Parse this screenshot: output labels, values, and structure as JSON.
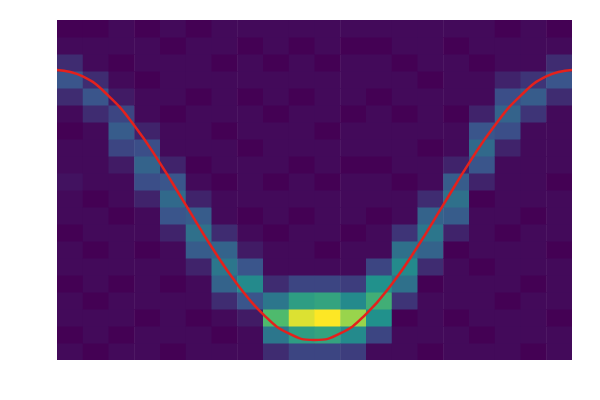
{
  "chart_data": {
    "type": "heatmap",
    "tick_labels": false,
    "xlim": [
      0,
      100
    ],
    "ylim": [
      0,
      100
    ],
    "x_bins": [
      0,
      5,
      10,
      15,
      20,
      25,
      30,
      35,
      40,
      45,
      50,
      55,
      60,
      65,
      70,
      75,
      80,
      85,
      90,
      95,
      100
    ],
    "y_bins": [
      0,
      5,
      10,
      15,
      20,
      25,
      30,
      35,
      40,
      45,
      50,
      55,
      60,
      65,
      70,
      75,
      80,
      85,
      90,
      95,
      100
    ],
    "counts": [
      [
        3,
        2,
        3,
        3,
        2,
        3,
        3,
        2,
        3,
        3,
        4,
        3,
        3,
        2,
        3,
        7,
        12,
        7,
        3,
        2
      ],
      [
        2,
        3,
        3,
        2,
        3,
        3,
        2,
        3,
        3,
        2,
        3,
        3,
        3,
        3,
        7,
        12,
        7,
        3,
        3,
        2
      ],
      [
        3,
        2,
        3,
        3,
        2,
        3,
        3,
        3,
        2,
        3,
        3,
        5,
        10,
        13,
        10,
        5,
        3,
        2,
        3,
        3
      ],
      [
        3,
        3,
        2,
        3,
        3,
        3,
        2,
        3,
        3,
        6,
        11,
        14,
        11,
        6,
        3,
        3,
        2,
        3,
        3,
        2
      ],
      [
        2,
        3,
        3,
        3,
        2,
        3,
        3,
        6,
        12,
        15,
        12,
        6,
        3,
        3,
        2,
        3,
        3,
        3,
        2,
        3
      ],
      [
        3,
        3,
        2,
        3,
        3,
        6,
        13,
        16,
        13,
        6,
        3,
        2,
        3,
        3,
        3,
        2,
        3,
        3,
        3,
        2
      ],
      [
        3,
        2,
        3,
        7,
        14,
        17,
        14,
        7,
        3,
        3,
        2,
        3,
        3,
        2,
        3,
        3,
        3,
        2,
        3,
        3
      ],
      [
        3,
        3,
        5,
        12,
        20,
        12,
        5,
        3,
        2,
        3,
        3,
        3,
        2,
        3,
        3,
        2,
        3,
        3,
        2,
        3
      ],
      [
        7,
        17,
        28,
        17,
        7,
        3,
        3,
        2,
        3,
        3,
        2,
        3,
        3,
        3,
        2,
        3,
        3,
        2,
        3,
        3
      ],
      [
        10,
        23,
        38,
        23,
        10,
        3,
        3,
        3,
        2,
        3,
        3,
        2,
        3,
        3,
        3,
        2,
        3,
        3,
        2,
        3
      ],
      [
        10,
        24,
        40,
        24,
        10,
        3,
        2,
        3,
        3,
        3,
        2,
        3,
        3,
        2,
        3,
        3,
        3,
        2,
        3,
        3
      ],
      [
        9,
        20,
        34,
        20,
        9,
        3,
        3,
        2,
        3,
        3,
        3,
        2,
        3,
        3,
        2,
        3,
        3,
        3,
        2,
        3
      ],
      [
        3,
        10,
        21,
        26,
        21,
        10,
        3,
        3,
        2,
        3,
        3,
        2,
        3,
        3,
        3,
        2,
        3,
        3,
        2,
        3
      ],
      [
        3,
        3,
        2,
        8,
        16,
        20,
        16,
        8,
        3,
        3,
        2,
        3,
        3,
        3,
        2,
        3,
        3,
        2,
        3,
        3
      ],
      [
        2,
        3,
        3,
        3,
        2,
        7,
        14,
        17,
        14,
        7,
        3,
        3,
        2,
        3,
        3,
        3,
        2,
        3,
        3,
        3
      ],
      [
        3,
        3,
        2,
        3,
        3,
        3,
        2,
        6,
        13,
        16,
        13,
        6,
        3,
        3,
        2,
        3,
        3,
        3,
        2,
        3
      ],
      [
        3,
        2,
        3,
        3,
        3,
        2,
        3,
        3,
        3,
        2,
        6,
        12,
        15,
        12,
        6,
        3,
        3,
        2,
        3,
        3
      ],
      [
        3,
        3,
        3,
        2,
        3,
        3,
        3,
        2,
        3,
        3,
        3,
        3,
        6,
        11,
        14,
        11,
        6,
        3,
        3,
        2
      ],
      [
        2,
        3,
        3,
        3,
        2,
        3,
        3,
        3,
        2,
        3,
        3,
        3,
        3,
        3,
        8,
        13,
        8,
        3,
        3,
        3
      ],
      [
        3,
        3,
        2,
        3,
        3,
        3,
        2,
        3,
        3,
        3,
        2,
        3,
        3,
        3,
        3,
        7,
        12,
        7,
        3,
        2
      ]
    ],
    "series": [
      {
        "type": "line",
        "color": "#e4211c",
        "x": [
          0,
          5,
          10,
          15,
          20,
          25,
          30,
          35,
          40,
          45,
          50,
          55,
          60,
          65,
          70,
          75,
          80,
          85,
          90,
          95,
          100
        ],
        "values": [
          85.3,
          83.4,
          77.7,
          69.0,
          57.9,
          45.6,
          33.3,
          22.3,
          13.5,
          7.8,
          5.9,
          7.8,
          13.5,
          22.3,
          33.3,
          45.6,
          57.9,
          69.0,
          77.7,
          83.4,
          85.3
        ]
      }
    ]
  }
}
